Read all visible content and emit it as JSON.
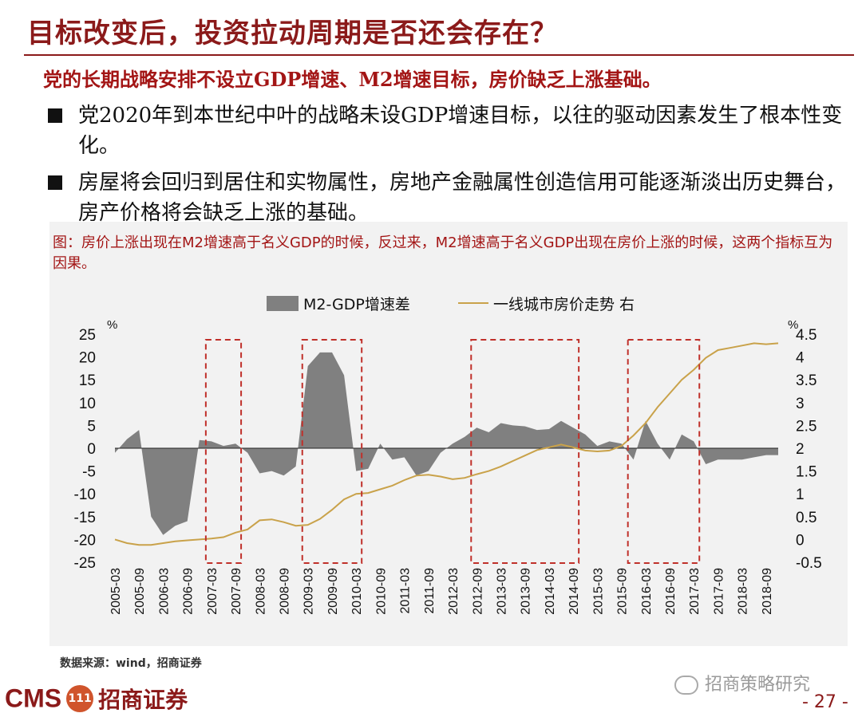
{
  "slide": {
    "title": "目标改变后，投资拉动周期是否还会存在？",
    "subtitle": "党的长期战略安排不设立GDP增速、M2增速目标，房价缺乏上涨基础。",
    "bullets": [
      "党2020年到本世纪中叶的战略未设GDP增速目标，以往的驱动因素发生了根本性变化。",
      "房屋将会回归到居住和实物属性，房地产金融属性创造信用可能逐渐淡出历史舞台，房产价格将会缺乏上涨的基础。"
    ],
    "chart_caption": "图：房价上涨出现在M2增速高于名义GDP的时候，反过来，M2增速高于名义GDP出现在房价上涨的时候，这两个指标互为因果。",
    "source": "数据来源：wind，招商证券",
    "watermark": "招商策略研究",
    "logo_latin": "CMS",
    "logo_badge": "111",
    "logo_cn": "招商证券",
    "page_number": "- 27 -"
  },
  "chart_data": {
    "type": "area+line",
    "legend": {
      "placement": "top",
      "items": [
        "M2-GDP增速差",
        "一线城市房价走势 右"
      ]
    },
    "left_axis": {
      "unit": "%",
      "range": [
        -25,
        25
      ],
      "ticks": [
        "25",
        "20",
        "15",
        "10",
        "5",
        "0",
        "-5",
        "-10",
        "-15",
        "-20",
        "-25"
      ]
    },
    "right_axis": {
      "unit": "%",
      "range": [
        -0.5,
        4.5
      ],
      "ticks": [
        "4.5",
        "4",
        "3.5",
        "3",
        "2.5",
        "2",
        "1.5",
        "1",
        "0.5",
        "0",
        "-0.5"
      ]
    },
    "x_tick_labels": [
      "2005-03",
      "2005-09",
      "2006-03",
      "2006-09",
      "2007-03",
      "2007-09",
      "2008-03",
      "2008-09",
      "2009-03",
      "2009-09",
      "2010-03",
      "2010-09",
      "2011-03",
      "2011-09",
      "2012-03",
      "2012-09",
      "2013-03",
      "2013-09",
      "2014-03",
      "2014-09",
      "2015-03",
      "2015-09",
      "2016-03",
      "2016-09",
      "2017-03",
      "2017-09",
      "2018-03",
      "2018-09"
    ],
    "x_quarters": [
      "2005-03",
      "2005-06",
      "2005-09",
      "2005-12",
      "2006-03",
      "2006-06",
      "2006-09",
      "2006-12",
      "2007-03",
      "2007-06",
      "2007-09",
      "2007-12",
      "2008-03",
      "2008-06",
      "2008-09",
      "2008-12",
      "2009-03",
      "2009-06",
      "2009-09",
      "2009-12",
      "2010-03",
      "2010-06",
      "2010-09",
      "2010-12",
      "2011-03",
      "2011-06",
      "2011-09",
      "2011-12",
      "2012-03",
      "2012-06",
      "2012-09",
      "2012-12",
      "2013-03",
      "2013-06",
      "2013-09",
      "2013-12",
      "2014-03",
      "2014-06",
      "2014-09",
      "2014-12",
      "2015-03",
      "2015-06",
      "2015-09",
      "2015-12",
      "2016-03",
      "2016-06",
      "2016-09",
      "2016-12",
      "2017-03",
      "2017-06",
      "2017-09",
      "2017-12",
      "2018-03",
      "2018-06",
      "2018-09",
      "2018-12"
    ],
    "series": [
      {
        "name": "M2-GDP增速差",
        "type": "area",
        "color": "#808080",
        "axis": "left",
        "values": [
          -1,
          2,
          4,
          -15,
          -19,
          -17,
          -16,
          1.8,
          1.5,
          0.5,
          1,
          -1,
          -5.5,
          -5,
          -6,
          -4,
          18,
          21,
          21,
          16,
          -5,
          -4.5,
          1,
          -2.5,
          -2,
          -6,
          -5,
          -1,
          1,
          2.5,
          4.5,
          3.5,
          5.5,
          5,
          4.8,
          4,
          4.2,
          6,
          4.5,
          3,
          0.5,
          1.5,
          1,
          -2.5,
          6,
          1,
          -2.5,
          3,
          1.5,
          -3.5,
          -2.5,
          -2.5,
          -2.5,
          -2,
          -1.5,
          -1.5
        ]
      },
      {
        "name": "一线城市房价走势 右",
        "type": "line",
        "color": "#c9a24a",
        "axis": "right",
        "values": [
          0,
          -0.08,
          -0.12,
          -0.12,
          -0.08,
          -0.04,
          -0.02,
          0,
          0.02,
          0.05,
          0.15,
          0.22,
          0.42,
          0.44,
          0.38,
          0.3,
          0.32,
          0.45,
          0.65,
          0.88,
          1.0,
          1.02,
          1.1,
          1.18,
          1.3,
          1.4,
          1.42,
          1.38,
          1.32,
          1.35,
          1.43,
          1.5,
          1.6,
          1.72,
          1.84,
          1.96,
          2.02,
          2.08,
          2.02,
          1.95,
          1.93,
          1.95,
          2.05,
          2.28,
          2.55,
          2.9,
          3.2,
          3.5,
          3.72,
          3.98,
          4.15,
          4.2,
          4.25,
          4.3,
          4.28,
          4.3
        ]
      }
    ],
    "highlight_periods": [
      [
        "2007-03",
        "2007-09"
      ],
      [
        "2009-03",
        "2010-03"
      ],
      [
        "2012-09",
        "2014-09"
      ],
      [
        "2015-12",
        "2017-03"
      ]
    ]
  }
}
